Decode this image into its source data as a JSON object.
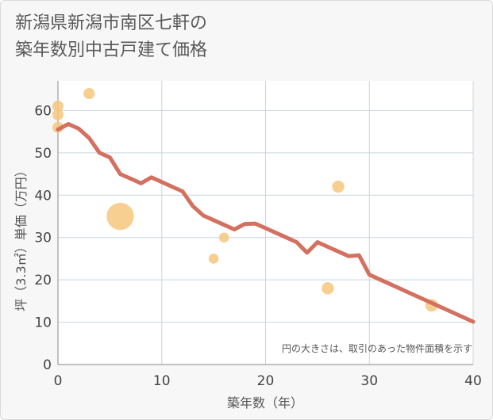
{
  "chart_data": {
    "type": "scatter",
    "title_lines": [
      "新潟県新潟市南区七軒の",
      "築年数別中古戸建て価格"
    ],
    "xlabel": "築年数（年）",
    "ylabel": "坪（3.3㎡）単価（万円）",
    "xlim": [
      0,
      40
    ],
    "ylim": [
      0,
      67
    ],
    "x_ticks": [
      0,
      10,
      20,
      30,
      40
    ],
    "y_ticks": [
      0,
      10,
      20,
      30,
      40,
      50,
      60
    ],
    "note": "円の大きさは、取引のあった物件面積を示す",
    "colors": {
      "points": "#f5c77e",
      "line": "#d3705f",
      "grid": "#c8d6e3"
    },
    "points": [
      {
        "x": 0,
        "y": 61,
        "size": 1
      },
      {
        "x": 0,
        "y": 59,
        "size": 1
      },
      {
        "x": 0,
        "y": 56,
        "size": 1
      },
      {
        "x": 3,
        "y": 64,
        "size": 1
      },
      {
        "x": 6,
        "y": 35,
        "size": 6
      },
      {
        "x": 15,
        "y": 25,
        "size": 0.8
      },
      {
        "x": 16,
        "y": 30,
        "size": 0.8
      },
      {
        "x": 26,
        "y": 18,
        "size": 1.2
      },
      {
        "x": 27,
        "y": 42,
        "size": 1.2
      },
      {
        "x": 36,
        "y": 14,
        "size": 1.3
      }
    ],
    "trend_line": {
      "x": [
        0,
        1,
        2,
        3,
        4,
        5,
        6,
        7,
        8,
        9,
        10,
        11,
        12,
        13,
        14,
        15,
        16,
        17,
        18,
        19,
        20,
        21,
        22,
        23,
        24,
        25,
        26,
        27,
        28,
        29,
        30,
        40
      ],
      "y": [
        55.5,
        56.8,
        55.7,
        53.5,
        50.0,
        48.9,
        45.0,
        43.9,
        42.8,
        44.2,
        43.1,
        42.0,
        40.9,
        37.4,
        35.2,
        34.1,
        33.0,
        31.9,
        33.2,
        33.3,
        32.2,
        31.1,
        30.0,
        28.9,
        26.4,
        28.9,
        27.8,
        26.7,
        25.6,
        25.8,
        21.2,
        10.1
      ]
    }
  }
}
